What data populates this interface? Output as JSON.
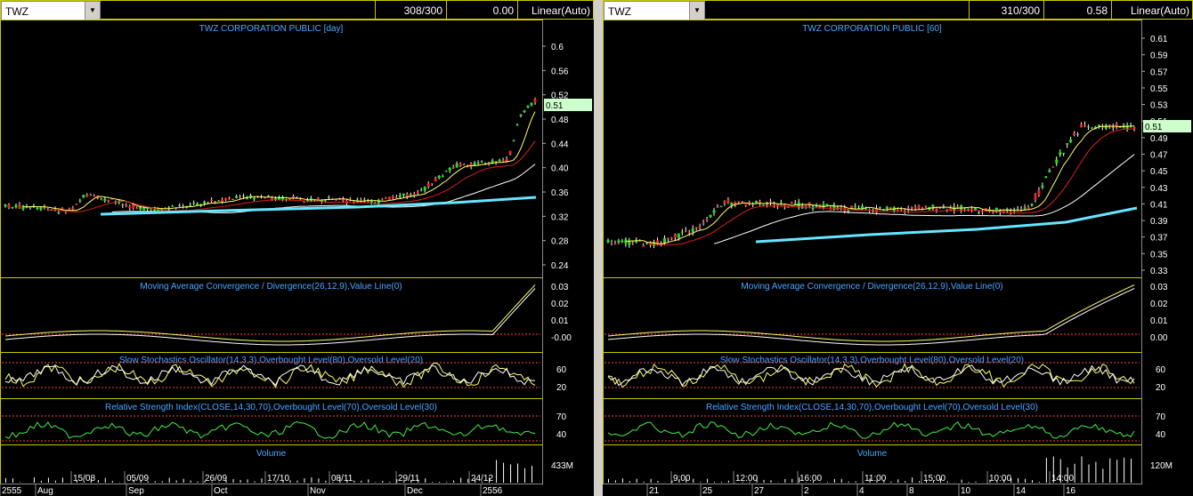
{
  "left": {
    "symbol": "TWZ",
    "count": "308/300",
    "value": "0.00",
    "scale": "Linear(Auto)",
    "title": "TWZ CORPORATION PUBLIC [day]",
    "price_ticks": [
      "0.6",
      "0.56",
      "0.52",
      "0.48",
      "0.44",
      "0.40",
      "0.36",
      "0.32",
      "0.28",
      "0.24"
    ],
    "last_price": "0.51",
    "macd_title": "Moving Average Convergence / Divergence(26,12,9),Value Line(0)",
    "macd_ticks": [
      "0.03",
      "0.02",
      "0.01",
      "-0.00"
    ],
    "stoch_title": "Slow Stochastics Oscillator(14,3,3),Overbought Level(80),Oversold Level(20)",
    "stoch_ticks": [
      "60",
      "20"
    ],
    "rsi_title": "Relative Strength Index(CLOSE,14,30,70),Overbought Level(70),Oversold Level(30)",
    "rsi_ticks": [
      "70",
      "40"
    ],
    "volume_title": "Volume",
    "volume_tick": "433M",
    "dates_top": [
      "15/08",
      "05/09",
      "26/09",
      "17/10",
      "08/11",
      "29/11",
      "24/12"
    ],
    "dates_bottom": [
      "2555",
      "Aug",
      "Sep",
      "Oct",
      "Nov",
      "Dec",
      "2556"
    ]
  },
  "right": {
    "symbol": "TWZ",
    "count": "310/300",
    "value": "0.58",
    "scale": "Linear(Auto)",
    "title": "TWZ CORPORATION PUBLIC [60]",
    "price_ticks": [
      "0.61",
      "0.59",
      "0.57",
      "0.55",
      "0.53",
      "0.51",
      "0.49",
      "0.47",
      "0.45",
      "0.43",
      "0.41",
      "0.39",
      "0.37",
      "0.35",
      "0.33"
    ],
    "last_price": "0.51",
    "macd_title": "Moving Average Convergence / Divergence(26,12,9),Value Line(0)",
    "macd_ticks": [
      "0.03",
      "0.02",
      "0.01",
      "0.00"
    ],
    "stoch_title": "Slow Stochastics Oscillator(14,3,3),Overbought Level(80),Oversold Level(20)",
    "stoch_ticks": [
      "60",
      "20"
    ],
    "rsi_title": "Relative Strength Index(CLOSE,14,30,70),Overbought Level(70),Oversold Level(30)",
    "rsi_ticks": [
      "70",
      "40"
    ],
    "volume_title": "Volume",
    "volume_tick": "120M",
    "dates_top": [
      "9:00",
      "12:00",
      "16:00",
      "11:00",
      "15:00",
      "10:00",
      "14:00"
    ],
    "dates_bottom": [
      "21",
      "25",
      "27",
      "2",
      "4",
      "8",
      "10",
      "14",
      "16"
    ]
  },
  "colors": {
    "up": "#22dd22",
    "down": "#ee2020",
    "panel_border": "#c8c800",
    "title": "#4da6ff",
    "cyan": "#66e6ff",
    "level": "#ff4040",
    "price_tag": "#ccffcc"
  }
}
